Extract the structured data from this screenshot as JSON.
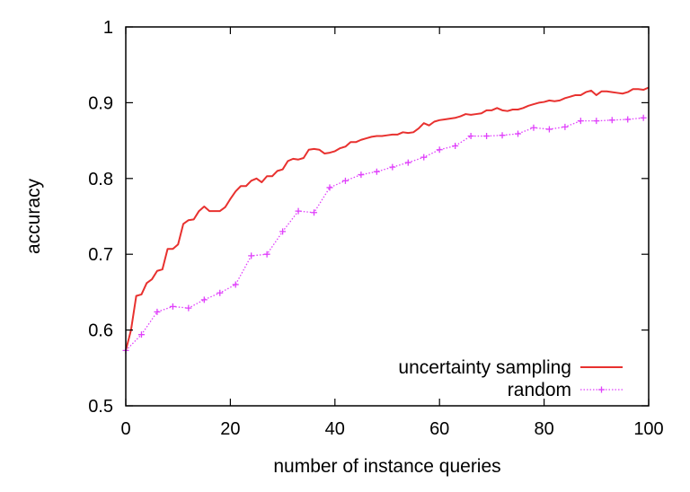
{
  "chart_data": {
    "type": "line",
    "title": "",
    "xlabel": "number of instance queries",
    "ylabel": "accuracy",
    "xlim": [
      0,
      100
    ],
    "ylim": [
      0.5,
      1
    ],
    "xticks": [
      0,
      20,
      40,
      60,
      80,
      100
    ],
    "yticks": [
      0.5,
      0.6,
      0.7,
      0.8,
      0.9,
      1
    ],
    "xtick_labels": [
      "0",
      "20",
      "40",
      "60",
      "80",
      "100"
    ],
    "ytick_labels": [
      "0.5",
      "0.6",
      "0.7",
      "0.8",
      "0.9",
      "1"
    ],
    "legend_position": "bottom-right",
    "grid": false,
    "series": [
      {
        "name": "uncertainty sampling",
        "color": "#e8312f",
        "style": "solid",
        "marker": "none",
        "x": [
          0,
          1,
          2,
          3,
          4,
          5,
          6,
          7,
          8,
          9,
          10,
          11,
          12,
          13,
          14,
          15,
          16,
          17,
          18,
          19,
          20,
          21,
          22,
          23,
          24,
          25,
          26,
          27,
          28,
          29,
          30,
          31,
          32,
          33,
          34,
          35,
          36,
          37,
          38,
          39,
          40,
          41,
          42,
          43,
          44,
          45,
          46,
          47,
          48,
          49,
          50,
          51,
          52,
          53,
          54,
          55,
          56,
          57,
          58,
          59,
          60,
          61,
          62,
          63,
          64,
          65,
          66,
          67,
          68,
          69,
          70,
          71,
          72,
          73,
          74,
          75,
          76,
          77,
          78,
          79,
          80,
          81,
          82,
          83,
          84,
          85,
          86,
          87,
          88,
          89,
          90,
          91,
          92,
          93,
          94,
          95,
          96,
          97,
          98,
          99,
          100
        ],
        "values": [
          0.573,
          0.6,
          0.645,
          0.647,
          0.662,
          0.667,
          0.678,
          0.68,
          0.707,
          0.707,
          0.713,
          0.74,
          0.745,
          0.746,
          0.757,
          0.763,
          0.757,
          0.757,
          0.757,
          0.762,
          0.773,
          0.783,
          0.79,
          0.79,
          0.797,
          0.8,
          0.795,
          0.803,
          0.803,
          0.81,
          0.812,
          0.823,
          0.826,
          0.825,
          0.827,
          0.838,
          0.839,
          0.838,
          0.833,
          0.834,
          0.836,
          0.84,
          0.842,
          0.848,
          0.848,
          0.851,
          0.853,
          0.855,
          0.856,
          0.856,
          0.857,
          0.858,
          0.858,
          0.861,
          0.86,
          0.861,
          0.866,
          0.873,
          0.87,
          0.875,
          0.877,
          0.878,
          0.879,
          0.88,
          0.882,
          0.885,
          0.884,
          0.885,
          0.886,
          0.89,
          0.89,
          0.893,
          0.89,
          0.889,
          0.891,
          0.891,
          0.893,
          0.896,
          0.898,
          0.9,
          0.901,
          0.903,
          0.902,
          0.903,
          0.906,
          0.908,
          0.91,
          0.91,
          0.914,
          0.916,
          0.91,
          0.915,
          0.915,
          0.914,
          0.913,
          0.912,
          0.914,
          0.918,
          0.918,
          0.917,
          0.92
        ]
      },
      {
        "name": "random",
        "color": "#e040fb",
        "style": "dotted",
        "marker": "plus",
        "x": [
          0,
          3,
          6,
          9,
          12,
          15,
          18,
          21,
          24,
          27,
          30,
          33,
          36,
          39,
          42,
          45,
          48,
          51,
          54,
          57,
          60,
          63,
          66,
          69,
          72,
          75,
          78,
          81,
          84,
          87,
          90,
          93,
          96,
          99
        ],
        "values": [
          0.573,
          0.594,
          0.624,
          0.631,
          0.629,
          0.64,
          0.649,
          0.66,
          0.698,
          0.7,
          0.73,
          0.757,
          0.755,
          0.788,
          0.797,
          0.805,
          0.809,
          0.815,
          0.821,
          0.828,
          0.838,
          0.843,
          0.856,
          0.856,
          0.857,
          0.859,
          0.867,
          0.865,
          0.868,
          0.876,
          0.876,
          0.877,
          0.878,
          0.88
        ]
      }
    ]
  }
}
